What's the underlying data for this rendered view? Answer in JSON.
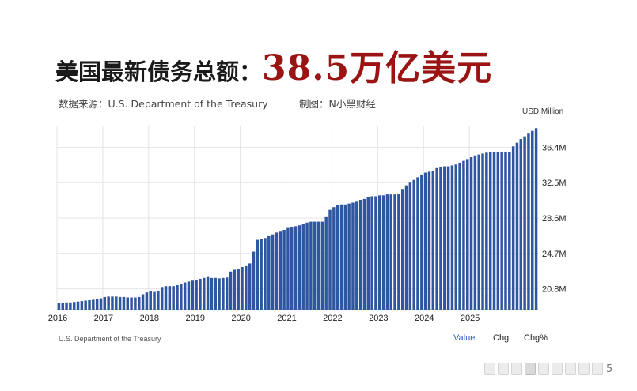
{
  "headline": {
    "prefix": "美国最新债务总额：",
    "value": "38.5万亿美元"
  },
  "source_line": "数据来源：U.S. Department of the Treasury",
  "credit_line": "制图：N小黑财经",
  "unit_label": "USD Million",
  "footer_source": "U.S. Department of the Treasury",
  "tabs": {
    "value": "Value",
    "chg": "Chg",
    "chgp": "Chg%"
  },
  "slider_end": "5",
  "colors": {
    "bar": "#2f56a0",
    "headline_value": "#9a1414",
    "grid": "#e4e4e4",
    "active_tab": "#2a5fbf"
  },
  "chart_data": {
    "type": "bar",
    "title": "",
    "xlabel": "",
    "ylabel": "USD Million",
    "ylim": [
      18500,
      38700
    ],
    "x_start": "2016",
    "x_ticks": [
      "2016",
      "2017",
      "2018",
      "2019",
      "2020",
      "2021",
      "2022",
      "2023",
      "2024",
      "2025"
    ],
    "y_ticks": [
      20800,
      24700,
      28600,
      32500,
      36400
    ],
    "y_tick_labels": [
      "20.8M",
      "24.7M",
      "28.6M",
      "32.5M",
      "36.4M"
    ],
    "grid": true,
    "frequency": "monthly",
    "values": [
      19200,
      19250,
      19300,
      19300,
      19350,
      19400,
      19450,
      19500,
      19550,
      19600,
      19650,
      19750,
      19900,
      19950,
      19950,
      19950,
      19900,
      19900,
      19850,
      19850,
      19850,
      19900,
      20200,
      20400,
      20500,
      20450,
      20500,
      21000,
      21100,
      21100,
      21100,
      21200,
      21300,
      21500,
      21600,
      21700,
      21800,
      21900,
      22000,
      22100,
      22000,
      22000,
      21950,
      22000,
      22050,
      22700,
      22900,
      23000,
      23200,
      23300,
      23600,
      24900,
      26200,
      26300,
      26400,
      26600,
      26800,
      27000,
      27100,
      27300,
      27500,
      27600,
      27700,
      27800,
      27900,
      28100,
      28200,
      28200,
      28200,
      28200,
      28700,
      29500,
      29800,
      30000,
      30100,
      30100,
      30200,
      30300,
      30400,
      30600,
      30700,
      30900,
      31000,
      31000,
      31100,
      31100,
      31200,
      31200,
      31200,
      31300,
      31800,
      32200,
      32500,
      32800,
      33100,
      33400,
      33600,
      33700,
      33800,
      34100,
      34200,
      34300,
      34300,
      34400,
      34500,
      34700,
      34900,
      35100,
      35300,
      35500,
      35600,
      35700,
      35800,
      35900,
      35900,
      35900,
      35900,
      35900,
      35900,
      36500,
      36900,
      37300,
      37600,
      37900,
      38200,
      38500
    ]
  }
}
